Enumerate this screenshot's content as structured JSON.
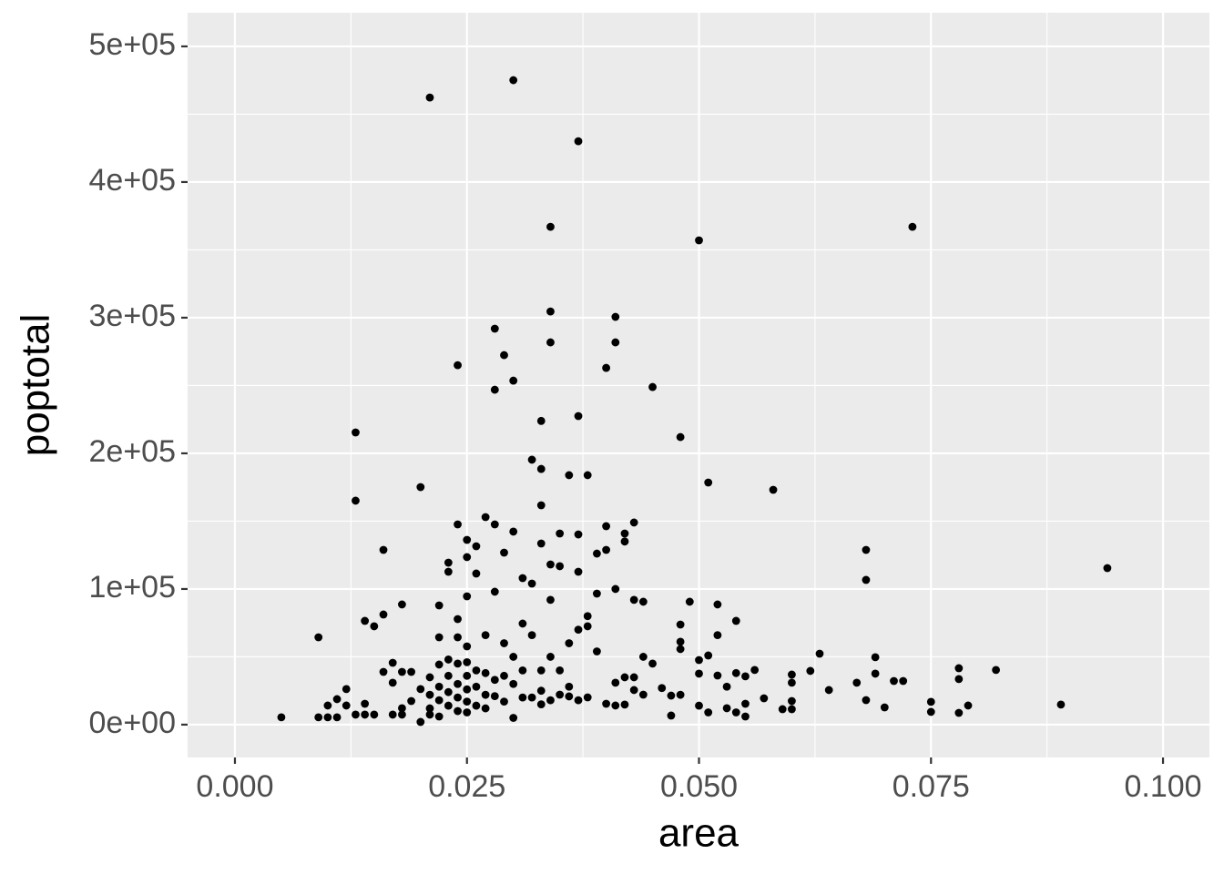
{
  "chart_data": {
    "type": "scatter",
    "x_label": "area",
    "y_label": "poptotal",
    "color": "#000000",
    "grid": true,
    "xlim": [
      -0.0051,
      0.105
    ],
    "ylim": [
      -24200,
      524800
    ],
    "xticks": [
      {
        "value": 0,
        "label": "0.000"
      },
      {
        "value": 0.025,
        "label": "0.025"
      },
      {
        "value": 0.05,
        "label": "0.050"
      },
      {
        "value": 0.075,
        "label": "0.075"
      },
      {
        "value": 0.1,
        "label": "0.100"
      }
    ],
    "yticks": [
      {
        "value": 0,
        "label": "0e+00"
      },
      {
        "value": 100000,
        "label": "1e+05"
      },
      {
        "value": 200000,
        "label": "2e+05"
      },
      {
        "value": 300000,
        "label": "3e+05"
      },
      {
        "value": 400000,
        "label": "4e+05"
      },
      {
        "value": 500000,
        "label": "5e+05"
      }
    ],
    "points": [
      [
        0.005,
        5400
      ],
      [
        0.009,
        64400
      ],
      [
        0.009,
        5400
      ],
      [
        0.01,
        14100
      ],
      [
        0.01,
        5400
      ],
      [
        0.011,
        18800
      ],
      [
        0.011,
        5400
      ],
      [
        0.012,
        26200
      ],
      [
        0.012,
        14100
      ],
      [
        0.013,
        215400
      ],
      [
        0.013,
        165100
      ],
      [
        0.013,
        7400
      ],
      [
        0.014,
        76500
      ],
      [
        0.014,
        15400
      ],
      [
        0.014,
        7400
      ],
      [
        0.015,
        72500
      ],
      [
        0.015,
        7400
      ],
      [
        0.016,
        128800
      ],
      [
        0.016,
        81200
      ],
      [
        0.016,
        38900
      ],
      [
        0.017,
        45600
      ],
      [
        0.017,
        30900
      ],
      [
        0.017,
        7400
      ],
      [
        0.018,
        88600
      ],
      [
        0.018,
        38900
      ],
      [
        0.018,
        12100
      ],
      [
        0.018,
        7400
      ],
      [
        0.019,
        38900
      ],
      [
        0.019,
        17400
      ],
      [
        0.02,
        175100
      ],
      [
        0.02,
        26200
      ],
      [
        0.02,
        2000
      ],
      [
        0.021,
        462300
      ],
      [
        0.021,
        34900
      ],
      [
        0.021,
        22000
      ],
      [
        0.021,
        12000
      ],
      [
        0.021,
        7400
      ],
      [
        0.022,
        87900
      ],
      [
        0.022,
        64400
      ],
      [
        0.022,
        44300
      ],
      [
        0.022,
        28000
      ],
      [
        0.022,
        18000
      ],
      [
        0.022,
        6000
      ],
      [
        0.023,
        119400
      ],
      [
        0.023,
        112700
      ],
      [
        0.023,
        48000
      ],
      [
        0.023,
        36000
      ],
      [
        0.023,
        24000
      ],
      [
        0.023,
        14000
      ],
      [
        0.024,
        265000
      ],
      [
        0.024,
        147600
      ],
      [
        0.024,
        77800
      ],
      [
        0.024,
        64400
      ],
      [
        0.024,
        45000
      ],
      [
        0.024,
        30000
      ],
      [
        0.024,
        20000
      ],
      [
        0.024,
        10000
      ],
      [
        0.025,
        136200
      ],
      [
        0.025,
        123500
      ],
      [
        0.025,
        94600
      ],
      [
        0.025,
        57700
      ],
      [
        0.025,
        46000
      ],
      [
        0.025,
        36000
      ],
      [
        0.025,
        26000
      ],
      [
        0.025,
        17000
      ],
      [
        0.025,
        9000
      ],
      [
        0.026,
        131500
      ],
      [
        0.026,
        111400
      ],
      [
        0.026,
        40000
      ],
      [
        0.026,
        28000
      ],
      [
        0.026,
        14000
      ],
      [
        0.027,
        153000
      ],
      [
        0.027,
        66000
      ],
      [
        0.027,
        38000
      ],
      [
        0.027,
        22000
      ],
      [
        0.027,
        12000
      ],
      [
        0.028,
        291900
      ],
      [
        0.028,
        246900
      ],
      [
        0.028,
        147600
      ],
      [
        0.028,
        98000
      ],
      [
        0.028,
        33000
      ],
      [
        0.028,
        21000
      ],
      [
        0.029,
        272400
      ],
      [
        0.029,
        126800
      ],
      [
        0.029,
        60000
      ],
      [
        0.029,
        36000
      ],
      [
        0.029,
        17000
      ],
      [
        0.03,
        475100
      ],
      [
        0.03,
        253600
      ],
      [
        0.03,
        142300
      ],
      [
        0.03,
        50000
      ],
      [
        0.03,
        30000
      ],
      [
        0.03,
        5000
      ],
      [
        0.031,
        108000
      ],
      [
        0.031,
        74500
      ],
      [
        0.031,
        40000
      ],
      [
        0.031,
        20000
      ],
      [
        0.032,
        195300
      ],
      [
        0.032,
        104000
      ],
      [
        0.032,
        66000
      ],
      [
        0.032,
        20000
      ],
      [
        0.033,
        223900
      ],
      [
        0.033,
        188500
      ],
      [
        0.033,
        161700
      ],
      [
        0.033,
        133500
      ],
      [
        0.033,
        40000
      ],
      [
        0.033,
        25000
      ],
      [
        0.033,
        15000
      ],
      [
        0.034,
        304600
      ],
      [
        0.034,
        367000
      ],
      [
        0.034,
        281800
      ],
      [
        0.034,
        118100
      ],
      [
        0.034,
        92000
      ],
      [
        0.034,
        50000
      ],
      [
        0.034,
        18000
      ],
      [
        0.035,
        140900
      ],
      [
        0.035,
        116800
      ],
      [
        0.035,
        40000
      ],
      [
        0.035,
        22100
      ],
      [
        0.036,
        183900
      ],
      [
        0.036,
        60000
      ],
      [
        0.036,
        28000
      ],
      [
        0.036,
        20800
      ],
      [
        0.037,
        430100
      ],
      [
        0.037,
        227500
      ],
      [
        0.037,
        140200
      ],
      [
        0.037,
        112700
      ],
      [
        0.037,
        70000
      ],
      [
        0.037,
        18000
      ],
      [
        0.038,
        183900
      ],
      [
        0.038,
        80000
      ],
      [
        0.038,
        72500
      ],
      [
        0.038,
        20100
      ],
      [
        0.039,
        126100
      ],
      [
        0.039,
        96600
      ],
      [
        0.039,
        54000
      ],
      [
        0.04,
        263000
      ],
      [
        0.04,
        146300
      ],
      [
        0.04,
        128800
      ],
      [
        0.04,
        15400
      ],
      [
        0.041,
        300600
      ],
      [
        0.041,
        281800
      ],
      [
        0.041,
        100000
      ],
      [
        0.041,
        30900
      ],
      [
        0.041,
        14100
      ],
      [
        0.042,
        140900
      ],
      [
        0.042,
        135000
      ],
      [
        0.042,
        34900
      ],
      [
        0.042,
        14800
      ],
      [
        0.043,
        149000
      ],
      [
        0.043,
        92000
      ],
      [
        0.043,
        34900
      ],
      [
        0.043,
        25500
      ],
      [
        0.044,
        90600
      ],
      [
        0.044,
        50000
      ],
      [
        0.044,
        22100
      ],
      [
        0.045,
        248900
      ],
      [
        0.045,
        45000
      ],
      [
        0.046,
        27000
      ],
      [
        0.047,
        21400
      ],
      [
        0.047,
        6700
      ],
      [
        0.048,
        212000
      ],
      [
        0.048,
        73800
      ],
      [
        0.048,
        61100
      ],
      [
        0.048,
        55700
      ],
      [
        0.048,
        22000
      ],
      [
        0.049,
        90600
      ],
      [
        0.05,
        357000
      ],
      [
        0.05,
        47600
      ],
      [
        0.05,
        37600
      ],
      [
        0.05,
        14000
      ],
      [
        0.051,
        178500
      ],
      [
        0.051,
        51000
      ],
      [
        0.051,
        9000
      ],
      [
        0.052,
        88600
      ],
      [
        0.052,
        66000
      ],
      [
        0.052,
        36200
      ],
      [
        0.053,
        28000
      ],
      [
        0.053,
        12100
      ],
      [
        0.054,
        76500
      ],
      [
        0.054,
        38000
      ],
      [
        0.054,
        9000
      ],
      [
        0.055,
        35600
      ],
      [
        0.055,
        15400
      ],
      [
        0.055,
        6000
      ],
      [
        0.056,
        40300
      ],
      [
        0.057,
        19400
      ],
      [
        0.058,
        173100
      ],
      [
        0.059,
        11400
      ],
      [
        0.06,
        36900
      ],
      [
        0.06,
        30900
      ],
      [
        0.06,
        17400
      ],
      [
        0.06,
        11400
      ],
      [
        0.062,
        39600
      ],
      [
        0.063,
        52300
      ],
      [
        0.064,
        25500
      ],
      [
        0.067,
        30900
      ],
      [
        0.068,
        128800
      ],
      [
        0.068,
        106700
      ],
      [
        0.068,
        18100
      ],
      [
        0.069,
        49700
      ],
      [
        0.069,
        37600
      ],
      [
        0.07,
        12700
      ],
      [
        0.071,
        32200
      ],
      [
        0.072,
        32200
      ],
      [
        0.073,
        367000
      ],
      [
        0.075,
        16800
      ],
      [
        0.075,
        9400
      ],
      [
        0.078,
        41600
      ],
      [
        0.078,
        33600
      ],
      [
        0.078,
        8700
      ],
      [
        0.079,
        14100
      ],
      [
        0.082,
        40300
      ],
      [
        0.089,
        14800
      ],
      [
        0.094,
        115400
      ]
    ]
  }
}
